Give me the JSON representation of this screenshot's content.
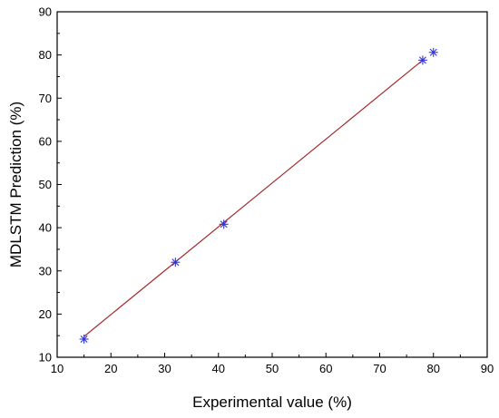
{
  "chart_data": {
    "type": "scatter",
    "title": "",
    "xlabel": "Experimental value (%)",
    "ylabel": "MDLSTM Prediction (%)",
    "xlim": [
      10,
      90
    ],
    "ylim": [
      10,
      90
    ],
    "x_ticks": [
      10,
      20,
      30,
      40,
      50,
      60,
      70,
      80,
      90
    ],
    "y_ticks": [
      10,
      20,
      30,
      40,
      50,
      60,
      70,
      80,
      90
    ],
    "x_tick_labels": [
      "10",
      "20",
      "30",
      "40",
      "50",
      "60",
      "70",
      "80",
      "90"
    ],
    "y_tick_labels": [
      "10",
      "20",
      "30",
      "40",
      "50",
      "60",
      "70",
      "80",
      "90"
    ],
    "grid": false,
    "legend": "none",
    "series": [
      {
        "marker": "asterisk",
        "color": "#3333dd",
        "points": [
          {
            "x": 15,
            "y": 14.2
          },
          {
            "x": 32,
            "y": 32
          },
          {
            "x": 41,
            "y": 40.8
          },
          {
            "x": 78,
            "y": 78.8
          },
          {
            "x": 80,
            "y": 80.6
          }
        ]
      }
    ],
    "fit_line": {
      "color": "#a52a2a",
      "from": {
        "x": 15,
        "y": 14.8
      },
      "to": {
        "x": 78,
        "y": 78.8
      }
    }
  }
}
